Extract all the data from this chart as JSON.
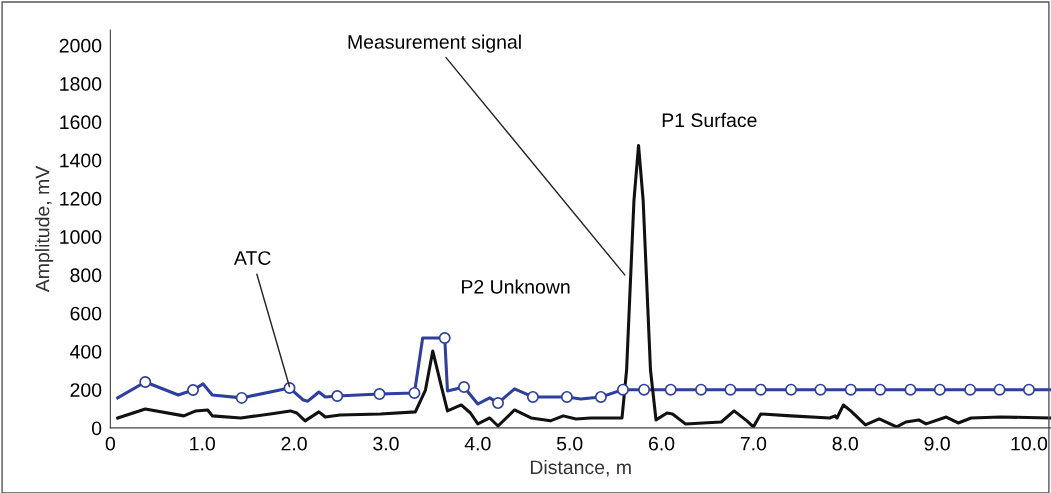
{
  "chart_data": {
    "type": "line",
    "xlabel": "Distance, m",
    "ylabel": "Amplitude, mV",
    "xlim": [
      0,
      10.24
    ],
    "ylim": [
      0,
      2080
    ],
    "xticks": [
      0,
      {
        "value": 1,
        "label": "1.0"
      },
      {
        "value": 2,
        "label": "2.0"
      },
      {
        "value": 3,
        "label": "3.0"
      },
      {
        "value": 4,
        "label": "4.0"
      },
      {
        "value": 5,
        "label": "5.0"
      },
      {
        "value": 6,
        "label": "6.0"
      },
      {
        "value": 7,
        "label": "7.0"
      },
      {
        "value": 8,
        "label": "8.0"
      },
      {
        "value": 9,
        "label": "9.0"
      },
      {
        "value": 10,
        "label": "10.0"
      }
    ],
    "yticks": [
      0,
      200,
      400,
      600,
      800,
      1000,
      1200,
      1400,
      1600,
      1800,
      2000
    ],
    "grid": false,
    "legend": false,
    "series": [
      {
        "color": "#2e3f9e",
        "marker": "none",
        "x": [
          0.08,
          0.38,
          0.74,
          0.9,
          1.01,
          1.11,
          1.43,
          1.95,
          2.1,
          2.15,
          2.27,
          2.34,
          2.47,
          2.93,
          3.31,
          3.4,
          3.64,
          3.67,
          3.85,
          4.0,
          4.13,
          4.22,
          4.4,
          4.6,
          4.97,
          5.12,
          5.34,
          5.58,
          10.24
        ],
        "values": [
          157,
          240,
          172,
          198,
          230,
          172,
          157,
          209,
          146,
          140,
          188,
          162,
          167,
          177,
          183,
          470,
          470,
          193,
          214,
          125,
          157,
          130,
          204,
          162,
          162,
          151,
          162,
          200,
          200
        ]
      },
      {
        "type": "scatter",
        "color": "#2e3f9e",
        "marker": "circle",
        "x": [
          0.38,
          0.9,
          1.43,
          1.95,
          2.47,
          2.93,
          3.31,
          3.64,
          3.85,
          4.22,
          4.6,
          4.97,
          5.34,
          5.58,
          5.81,
          6.1,
          6.43,
          6.75,
          7.08,
          7.41,
          7.73,
          8.06,
          8.38,
          8.71,
          9.03,
          9.36,
          9.68,
          10.0
        ],
        "values": [
          240,
          198,
          157,
          209,
          167,
          177,
          183,
          470,
          214,
          130,
          162,
          162,
          162,
          200,
          200,
          200,
          200,
          200,
          200,
          200,
          200,
          200,
          200,
          200,
          200,
          200,
          200,
          200
        ]
      },
      {
        "color": "#111111",
        "marker": "none",
        "x": [
          0.08,
          0.38,
          0.8,
          0.93,
          1.06,
          1.11,
          1.42,
          1.74,
          1.96,
          2.03,
          2.12,
          2.27,
          2.34,
          2.5,
          2.94,
          3.32,
          3.43,
          3.51,
          3.6,
          3.67,
          3.82,
          3.92,
          4.0,
          4.13,
          4.22,
          4.4,
          4.58,
          4.79,
          4.93,
          5.07,
          5.23,
          5.57,
          5.62,
          5.7,
          5.75,
          5.8,
          5.88,
          5.94,
          6.06,
          6.12,
          6.26,
          6.65,
          6.79,
          6.93,
          7.0,
          7.08,
          7.41,
          7.83,
          7.89,
          7.91,
          7.98,
          8.06,
          8.22,
          8.37,
          8.56,
          8.66,
          8.8,
          8.88,
          9.1,
          9.23,
          9.37,
          9.69,
          10.24
        ],
        "values": [
          52,
          99,
          63,
          89,
          94,
          63,
          52,
          73,
          89,
          78,
          37,
          84,
          57,
          68,
          73,
          84,
          198,
          402,
          224,
          89,
          120,
          78,
          21,
          52,
          10,
          94,
          52,
          37,
          63,
          47,
          52,
          52,
          303,
          1190,
          1477,
          1190,
          303,
          42,
          78,
          73,
          21,
          31,
          89,
          37,
          5,
          73,
          63,
          52,
          63,
          52,
          120,
          89,
          16,
          47,
          5,
          31,
          42,
          21,
          57,
          26,
          52,
          57,
          52
        ]
      }
    ],
    "annotations": [
      {
        "text": "ATC",
        "x": 1.95,
        "y": 215
      },
      {
        "text": "P2 Unknown",
        "x": 3.66,
        "y": 500
      },
      {
        "text": "Measurement signal",
        "x": 5.6,
        "y": 800
      },
      {
        "text": "P1 Surface",
        "x": 5.77,
        "y": 1480
      }
    ]
  }
}
